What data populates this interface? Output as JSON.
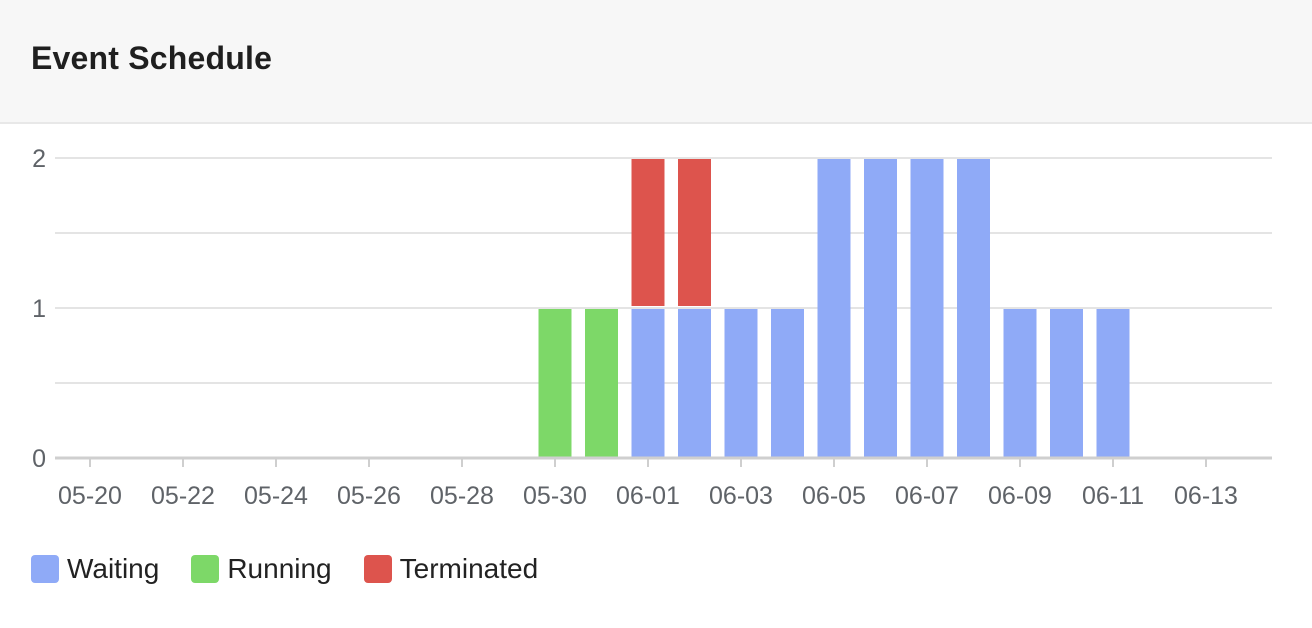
{
  "card": {
    "title": "Event Schedule"
  },
  "chart_data": {
    "type": "bar",
    "stacked": true,
    "categories": [
      "05-20",
      "05-21",
      "05-22",
      "05-23",
      "05-24",
      "05-25",
      "05-26",
      "05-27",
      "05-28",
      "05-29",
      "05-30",
      "05-31",
      "06-01",
      "06-02",
      "06-03",
      "06-04",
      "06-05",
      "06-06",
      "06-07",
      "06-08",
      "06-09",
      "06-10",
      "06-11",
      "06-12",
      "06-13"
    ],
    "x_tick_labels": [
      "05-20",
      "05-22",
      "05-24",
      "05-26",
      "05-28",
      "05-30",
      "06-01",
      "06-03",
      "06-05",
      "06-07",
      "06-09",
      "06-11",
      "06-13"
    ],
    "series": [
      {
        "name": "Waiting",
        "color": "#8faaf7",
        "values": [
          0,
          0,
          0,
          0,
          0,
          0,
          0,
          0,
          0,
          0,
          0,
          0,
          1,
          1,
          1,
          1,
          2,
          2,
          2,
          2,
          1,
          1,
          1,
          0,
          0
        ]
      },
      {
        "name": "Running",
        "color": "#7dd868",
        "values": [
          0,
          0,
          0,
          0,
          0,
          0,
          0,
          0,
          0,
          0,
          1,
          1,
          0,
          0,
          0,
          0,
          0,
          0,
          0,
          0,
          0,
          0,
          0,
          0,
          0
        ]
      },
      {
        "name": "Terminated",
        "color": "#dd544d",
        "values": [
          0,
          0,
          0,
          0,
          0,
          0,
          0,
          0,
          0,
          0,
          0,
          0,
          1,
          1,
          0,
          0,
          0,
          0,
          0,
          0,
          0,
          0,
          0,
          0,
          0
        ]
      }
    ],
    "y_ticks": [
      0,
      1,
      2
    ],
    "ylim": [
      0,
      2
    ],
    "grid": true,
    "legend_position": "bottom-left",
    "xlabel": "",
    "ylabel": ""
  }
}
